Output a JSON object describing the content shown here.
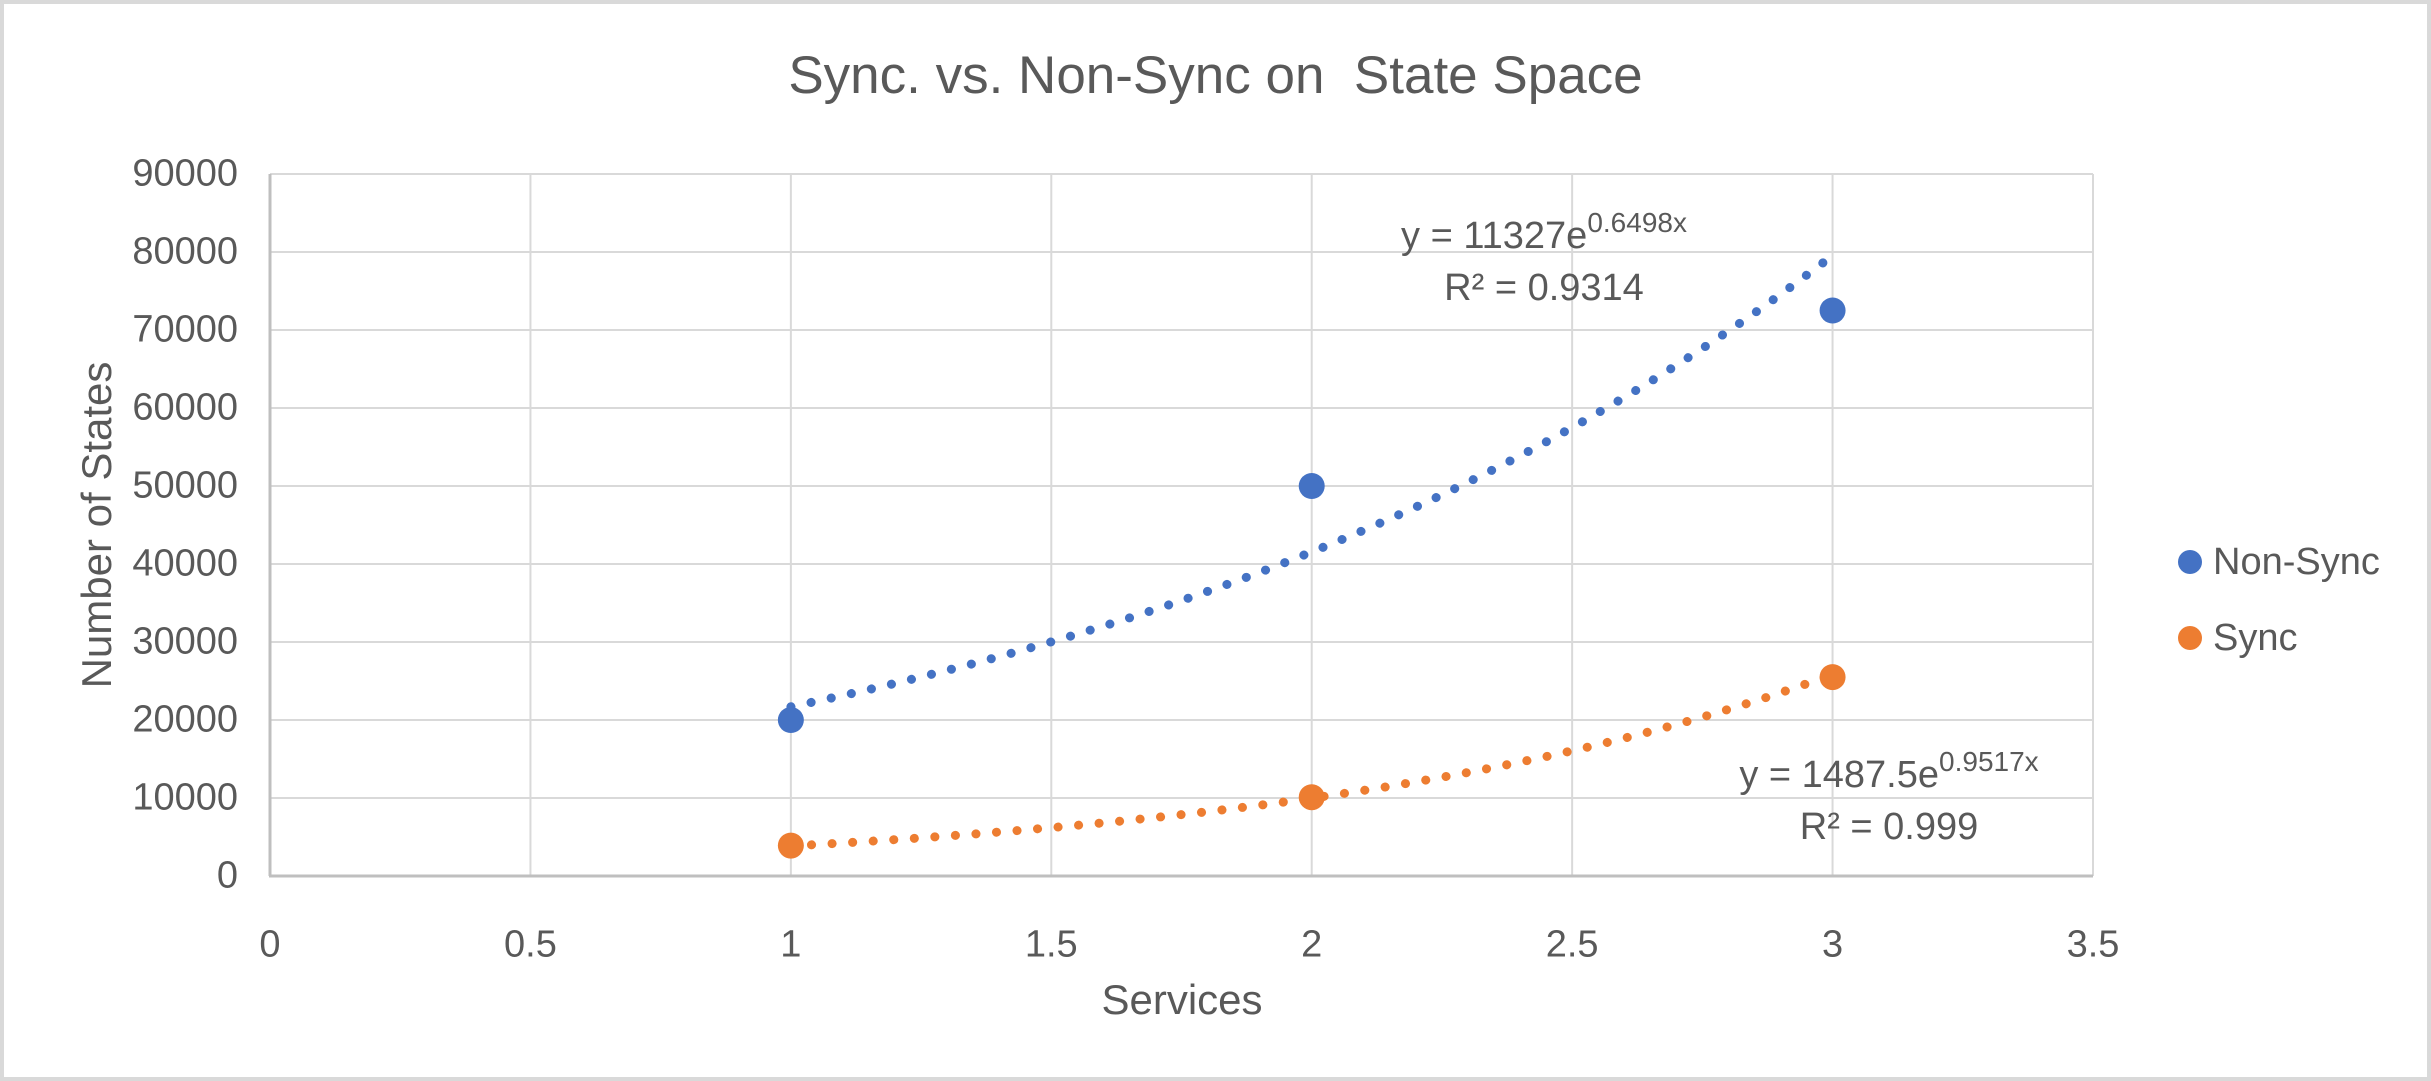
{
  "chart_data": {
    "type": "scatter",
    "title": "Sync. vs. Non-Sync on  State Space",
    "xlabel": "Services",
    "ylabel": "Number of States",
    "xlim": [
      0,
      3.5
    ],
    "ylim": [
      0,
      90000
    ],
    "grid": true,
    "legend_position": "right",
    "x_ticks": [
      0,
      0.5,
      1,
      1.5,
      2,
      2.5,
      3,
      3.5
    ],
    "x_tick_labels": [
      "0",
      "0.5",
      "1",
      "1.5",
      "2",
      "2.5",
      "3",
      "3.5"
    ],
    "y_ticks": [
      0,
      10000,
      20000,
      30000,
      40000,
      50000,
      60000,
      70000,
      80000,
      90000
    ],
    "y_tick_labels": [
      "0",
      "10000",
      "20000",
      "30000",
      "40000",
      "50000",
      "60000",
      "70000",
      "80000",
      "90000"
    ],
    "series": [
      {
        "name": "Non-Sync",
        "color": "#4472C4",
        "marker": "circle",
        "x": [
          1,
          2,
          3
        ],
        "y": [
          20000,
          50000,
          72500
        ],
        "trendline": {
          "type": "exponential",
          "style": "dotted",
          "a": 11327,
          "b": 0.6498,
          "x_range": [
            1,
            3
          ],
          "equation_base": "y = 11327e",
          "equation_exponent": "0.6498x",
          "r_squared": "R² = 0.9314"
        }
      },
      {
        "name": "Sync",
        "color": "#ED7D31",
        "marker": "circle",
        "x": [
          1,
          2,
          3
        ],
        "y": [
          3900,
          10100,
          25500
        ],
        "trendline": {
          "type": "exponential",
          "style": "dotted",
          "a": 1487.5,
          "b": 0.9517,
          "x_range": [
            1,
            3
          ],
          "equation_base": "y = 1487.5e",
          "equation_exponent": "0.9517x",
          "r_squared": "R² = 0.999"
        }
      }
    ]
  },
  "colors": {
    "text": "#595959",
    "gridline": "#D9D9D9",
    "axis_line": "#BFBFBF",
    "background": "#FFFFFF",
    "border": "#D9D9D9"
  }
}
